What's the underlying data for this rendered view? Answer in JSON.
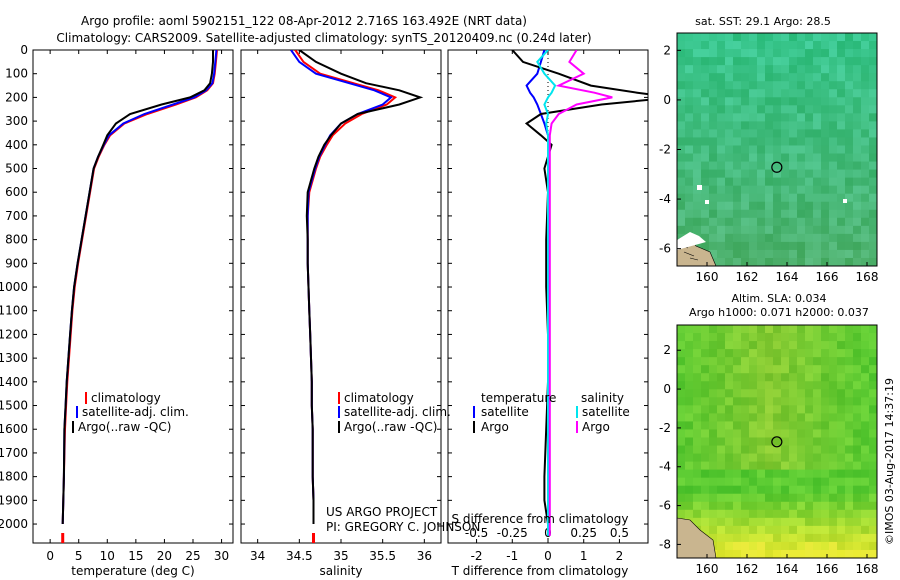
{
  "header": {
    "title_line1": "Argo profile: aoml 5902151_122 08-Apr-2012 2.716S 163.492E (NRT data)",
    "title_line2": "Climatology: CARS2009. Satellite-adjusted climatology: synTS_20120409.nc (0.24d later)"
  },
  "colors": {
    "climatology": "#ff0000",
    "satellite": "#0000ff",
    "argo": "#000000",
    "sat_salinity": "#00e5ee",
    "argo_salinity": "#ff00ff"
  },
  "depth_axis": {
    "ticks": [
      0,
      100,
      200,
      300,
      400,
      500,
      600,
      700,
      800,
      900,
      1000,
      1100,
      1200,
      1300,
      1400,
      1500,
      1600,
      1700,
      1800,
      1900,
      2000
    ],
    "range": [
      0,
      2080
    ]
  },
  "legend_main": {
    "climatology": "climatology",
    "satellite": "satellite-adj. clim.",
    "argo": "Argo(..raw -QC)"
  },
  "legend_diff": {
    "temp_header": "temperature",
    "sal_header": "salinity",
    "sat_label": "satellite",
    "argo_label": "Argo"
  },
  "credits": {
    "line1": "US ARGO PROJECT",
    "line2": "PI: GREGORY C. JOHNSON"
  },
  "map_top": {
    "title": "sat. SST: 29.1  Argo: 28.5",
    "x_ticks": [
      "160",
      "162",
      "164",
      "166",
      "168"
    ],
    "y_ticks": [
      "2",
      "0",
      "-2",
      "-4",
      "-6"
    ]
  },
  "map_bottom": {
    "title_line1": "Altim. SLA: 0.034",
    "title_line2": "Argo h1000: 0.071 h2000: 0.037",
    "x_ticks": [
      "160",
      "162",
      "164",
      "166",
      "168"
    ],
    "y_ticks": [
      "2",
      "0",
      "-2",
      "-4",
      "-6",
      "-8"
    ]
  },
  "watermark": "©IMOS 03-Aug-2017 14:37:19",
  "chart_data": [
    {
      "type": "line",
      "id": "temperature",
      "xlabel": "temperature (deg C)",
      "ylabel": "depth",
      "xlim": [
        -3,
        32
      ],
      "ylim": [
        2080,
        0
      ],
      "x_ticks": [
        0,
        5,
        10,
        15,
        20,
        25,
        30
      ],
      "series": [
        {
          "name": "climatology",
          "color": "#ff0000",
          "x": [
            29.2,
            29.0,
            28.8,
            28.5,
            27.5,
            25.5,
            22,
            17,
            13,
            10.5,
            9.5,
            8.5,
            7.7,
            7.0,
            6.3,
            5.6,
            4.9,
            4.3,
            3.9,
            3.6,
            3.3,
            3.0,
            2.8,
            2.6,
            2.4,
            2.3,
            2.2
          ],
          "y": [
            0,
            50,
            100,
            140,
            170,
            200,
            230,
            270,
            310,
            360,
            400,
            450,
            500,
            600,
            700,
            800,
            900,
            1000,
            1100,
            1200,
            1300,
            1400,
            1500,
            1600,
            1800,
            1900,
            2000
          ]
        },
        {
          "name": "satellite-adj. clim.",
          "color": "#0000ff",
          "x": [
            29.1,
            28.9,
            28.7,
            28.4,
            27.3,
            25.2,
            21.5,
            16.5,
            12.8,
            10.3,
            9.4,
            8.4,
            7.6,
            6.9,
            6.2,
            5.5,
            4.8,
            4.2,
            3.8,
            3.5,
            3.2,
            2.9,
            2.7,
            2.5,
            2.4,
            2.3,
            2.2
          ],
          "y": [
            0,
            50,
            100,
            140,
            170,
            200,
            230,
            270,
            310,
            360,
            400,
            450,
            500,
            600,
            700,
            800,
            900,
            1000,
            1100,
            1200,
            1300,
            1400,
            1500,
            1600,
            1800,
            1900,
            2000
          ]
        },
        {
          "name": "Argo(..raw -QC)",
          "color": "#000000",
          "x": [
            28.5,
            28.5,
            28.3,
            28.0,
            27.0,
            24.5,
            19.5,
            14.0,
            11.5,
            10.0,
            9.3,
            8.4,
            7.6,
            6.9,
            6.2,
            5.5,
            4.8,
            4.2,
            3.8,
            3.5,
            3.2,
            2.9,
            2.7,
            2.5,
            2.4,
            2.3,
            2.2
          ],
          "y": [
            0,
            50,
            100,
            140,
            170,
            200,
            230,
            270,
            310,
            360,
            400,
            450,
            500,
            600,
            700,
            800,
            900,
            1000,
            1100,
            1200,
            1300,
            1400,
            1500,
            1600,
            1800,
            1900,
            2000
          ]
        }
      ]
    },
    {
      "type": "line",
      "id": "salinity",
      "xlabel": "salinity",
      "ylabel": "depth",
      "xlim": [
        33.8,
        36.2
      ],
      "ylim": [
        2080,
        0
      ],
      "x_ticks": [
        34,
        34.5,
        35,
        35.5,
        36
      ],
      "series": [
        {
          "name": "climatology",
          "color": "#ff0000",
          "x": [
            34.45,
            34.55,
            34.75,
            35.15,
            35.45,
            35.65,
            35.55,
            35.25,
            35.05,
            34.9,
            34.83,
            34.75,
            34.7,
            34.62,
            34.6,
            34.6,
            34.6,
            34.61,
            34.62,
            34.63,
            34.64,
            34.65,
            34.65,
            34.66,
            34.66,
            34.67,
            34.67
          ],
          "y": [
            0,
            50,
            100,
            140,
            170,
            200,
            230,
            270,
            310,
            360,
            400,
            450,
            500,
            600,
            700,
            800,
            900,
            1000,
            1100,
            1200,
            1300,
            1400,
            1500,
            1600,
            1800,
            1900,
            2000
          ]
        },
        {
          "name": "satellite-adj. clim.",
          "color": "#0000ff",
          "x": [
            34.4,
            34.5,
            34.7,
            35.1,
            35.4,
            35.6,
            35.5,
            35.2,
            35.0,
            34.87,
            34.81,
            34.74,
            34.69,
            34.61,
            34.6,
            34.6,
            34.6,
            34.61,
            34.62,
            34.63,
            34.64,
            34.65,
            34.65,
            34.66,
            34.66,
            34.67,
            34.67
          ],
          "y": [
            0,
            50,
            100,
            140,
            170,
            200,
            230,
            270,
            310,
            360,
            400,
            450,
            500,
            600,
            700,
            800,
            900,
            1000,
            1100,
            1200,
            1300,
            1400,
            1500,
            1600,
            1800,
            1900,
            2000
          ]
        },
        {
          "name": "Argo(..raw -QC)",
          "color": "#000000",
          "x": [
            34.5,
            34.7,
            35.0,
            35.3,
            35.7,
            35.95,
            35.7,
            35.2,
            35.0,
            34.88,
            34.8,
            34.73,
            34.68,
            34.6,
            34.59,
            34.6,
            34.6,
            34.61,
            34.62,
            34.63,
            34.64,
            34.65,
            34.65,
            34.66,
            34.66,
            34.67,
            34.67
          ],
          "y": [
            0,
            50,
            100,
            140,
            170,
            200,
            230,
            270,
            310,
            360,
            400,
            450,
            500,
            600,
            700,
            800,
            900,
            1000,
            1100,
            1200,
            1300,
            1400,
            1500,
            1600,
            1800,
            1900,
            2000
          ]
        }
      ]
    },
    {
      "type": "line",
      "id": "difference",
      "xlabel": "T difference from climatology",
      "xlabel_top": "S difference from climatology",
      "xlim": [
        -2.8,
        2.8
      ],
      "ylim": [
        2080,
        0
      ],
      "x_ticks": [
        -2,
        -1,
        0,
        1,
        2
      ],
      "s_ticks": [
        {
          "label": "-0.5",
          "at": -2
        },
        {
          "label": "-0.25",
          "at": -1
        },
        {
          "label": "0",
          "at": 0
        },
        {
          "label": "0.25",
          "at": 1
        },
        {
          "label": "0.5",
          "at": 2
        }
      ],
      "series": [
        {
          "name": "T satellite",
          "color": "#0000ff",
          "x": [
            -0.1,
            -0.2,
            -0.3,
            -0.6,
            -0.5,
            -0.4,
            -0.3,
            -0.2,
            -0.1,
            0,
            0,
            0,
            0,
            0,
            0,
            0,
            0,
            0,
            0,
            0,
            0,
            0,
            0
          ],
          "y": [
            0,
            50,
            100,
            150,
            180,
            200,
            230,
            270,
            310,
            360,
            400,
            500,
            600,
            800,
            1000,
            1200,
            1400,
            1600,
            1800,
            1900,
            1950,
            2000,
            2050
          ]
        },
        {
          "name": "T Argo",
          "color": "#000000",
          "x": [
            -1.0,
            -0.7,
            0.3,
            1.2,
            2.5,
            3.5,
            1.5,
            -0.2,
            -0.6,
            -0.2,
            0.1,
            -0.1,
            0.0,
            -0.05,
            -0.05,
            0.0,
            0.0,
            -0.05,
            -0.1,
            -0.1,
            -0.05,
            0.0,
            0.0
          ],
          "y": [
            0,
            50,
            100,
            150,
            180,
            200,
            230,
            270,
            310,
            360,
            400,
            500,
            600,
            800,
            1000,
            1200,
            1400,
            1600,
            1800,
            1900,
            1950,
            2000,
            2050
          ]
        },
        {
          "name": "S satellite",
          "color": "#00e5ee",
          "x": [
            0,
            -0.3,
            -0.1,
            0.2,
            0.1,
            0.0,
            -0.1,
            0.0,
            -0.05,
            0.0,
            0.0,
            0.0,
            0.0,
            0.0,
            0.0,
            0.0,
            0.0,
            0.0,
            0.0,
            0.0,
            0.0,
            0.0,
            0.0
          ],
          "y": [
            0,
            50,
            100,
            150,
            180,
            200,
            230,
            270,
            310,
            360,
            400,
            500,
            600,
            800,
            1000,
            1200,
            1400,
            1600,
            1800,
            1900,
            1950,
            2000,
            2050
          ]
        },
        {
          "name": "S Argo",
          "color": "#ff00ff",
          "x": [
            0.8,
            0.6,
            1.0,
            0.3,
            1.3,
            1.8,
            0.8,
            0.3,
            0.1,
            0.05,
            0.05,
            0.05,
            0.05,
            0.05,
            0.05,
            0.05,
            0.05,
            0.05,
            0.05,
            0.05,
            0.05,
            0.05,
            0.05
          ],
          "y": [
            0,
            50,
            100,
            150,
            180,
            200,
            230,
            270,
            310,
            360,
            400,
            500,
            600,
            800,
            1000,
            1200,
            1400,
            1600,
            1800,
            1900,
            1950,
            2000,
            2050
          ]
        }
      ]
    },
    {
      "type": "heatmap",
      "id": "sst_map",
      "title": "sat. SST: 29.1  Argo: 28.5",
      "xlim": [
        158.5,
        168.5
      ],
      "ylim": [
        -6.7,
        2.7
      ],
      "float_position": {
        "lon": 163.492,
        "lat": -2.716
      }
    },
    {
      "type": "heatmap",
      "id": "sla_map",
      "title": "Altim. SLA: 0.034",
      "xlim": [
        158.5,
        168.5
      ],
      "ylim": [
        -8.7,
        3.3
      ],
      "float_position": {
        "lon": 163.492,
        "lat": -2.716
      }
    }
  ]
}
